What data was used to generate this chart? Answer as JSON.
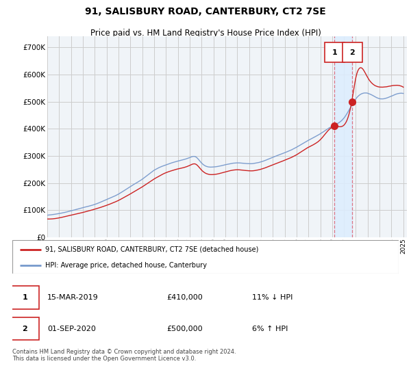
{
  "title": "91, SALISBURY ROAD, CANTERBURY, CT2 7SE",
  "subtitle": "Price paid vs. HM Land Registry's House Price Index (HPI)",
  "title_fontsize": 10,
  "subtitle_fontsize": 8.5,
  "ylabel_ticks": [
    "£0",
    "£100K",
    "£200K",
    "£300K",
    "£400K",
    "£500K",
    "£600K",
    "£700K"
  ],
  "ytick_vals": [
    0,
    100000,
    200000,
    300000,
    400000,
    500000,
    600000,
    700000
  ],
  "ylim": [
    0,
    740000
  ],
  "xlim_start": 1995.0,
  "xlim_end": 2025.3,
  "hpi_color": "#7799cc",
  "price_color": "#cc2222",
  "vline_color": "#dd6677",
  "shade_color": "#ddeeff",
  "annotation_box_color": "#cc2222",
  "grid_color": "#cccccc",
  "background_color": "#f0f4f8",
  "legend_entry1": "91, SALISBURY ROAD, CANTERBURY, CT2 7SE (detached house)",
  "legend_entry2": "HPI: Average price, detached house, Canterbury",
  "transaction1_label": "1",
  "transaction1_date": "15-MAR-2019",
  "transaction1_price": "£410,000",
  "transaction1_hpi": "11% ↓ HPI",
  "transaction1_x": 2019.2,
  "transaction1_y": 410000,
  "transaction2_label": "2",
  "transaction2_date": "01-SEP-2020",
  "transaction2_price": "£500,000",
  "transaction2_hpi": "6% ↑ HPI",
  "transaction2_x": 2020.7,
  "transaction2_y": 500000,
  "footnote": "Contains HM Land Registry data © Crown copyright and database right 2024.\nThis data is licensed under the Open Government Licence v3.0."
}
